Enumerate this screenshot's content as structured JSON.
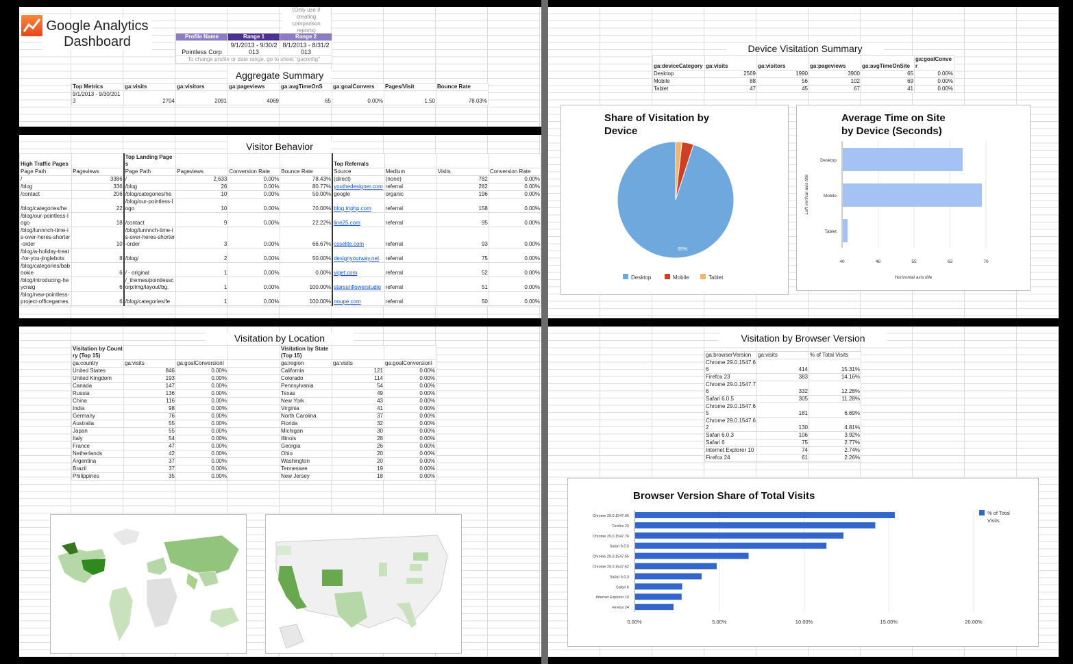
{
  "header": {
    "title_line1": "Google Analytics",
    "title_line2": "Dashboard",
    "note": "(Only use if creating comparison reports)",
    "profile_label": "Profile Name",
    "range1_label": "Range 1",
    "range2_label": "Range 2",
    "profile": "Pointless Corp",
    "range1": "9/1/2013 - 9/30/2013",
    "range2": "8/1/2013 - 8/31/2013",
    "hint": "To change profile or date range, go to sheet \"gaconfig\"",
    "brand_color": "#f4511e",
    "purple": "#8e7cc3",
    "purple_dark": "#4c2f92"
  },
  "aggregate": {
    "title": "Aggregate Summary",
    "headers": [
      "Top Metrics",
      "ga:visits",
      "ga:visitors",
      "ga:pageviews",
      "ga:avgTimeOnS",
      "ga:goalConvers",
      "Pages/Visit",
      "Bounce Rate"
    ],
    "row": [
      "9/1/2013 - 9/30/2013",
      "2704",
      "2091",
      "4069",
      "65",
      "0.00%",
      "1.50",
      "78.03%"
    ]
  },
  "visitor_behavior": {
    "title": "Visitor Behavior",
    "high_traffic": {
      "title": "High Traffic Pages",
      "headers": [
        "Page Path",
        "Pageviews"
      ],
      "rows": [
        [
          "/",
          "3386"
        ],
        [
          "/blog",
          "336"
        ],
        [
          "/contact",
          "206"
        ],
        [
          "/blog/categories/he",
          "22"
        ],
        [
          "/blog/our-pointless-logo",
          "18"
        ],
        [
          "/blog/lunnnch-time-is-over-heres-shorter-order",
          "10"
        ],
        [
          "/blog/a-holiday-treat-for-you-jinglebots",
          "8"
        ],
        [
          "/blog/categories/babookie",
          "6"
        ],
        [
          "/blog/introducing-heycraig",
          "6"
        ],
        [
          "/blog/new-pointless-project-officegames",
          "6"
        ]
      ]
    },
    "landing": {
      "title": "Top Landing Pages",
      "headers": [
        "Page Path",
        "Pageviews",
        "Conversion Rate",
        "Bounce Rate"
      ],
      "rows": [
        [
          "/",
          "2,633",
          "0.00%",
          "78.43%"
        ],
        [
          "/blog",
          "26",
          "0.00%",
          "80.77%"
        ],
        [
          "/blog/categories/he",
          "10",
          "0.00%",
          "50.00%"
        ],
        [
          "/blog/our-pointless-logo",
          "10",
          "0.00%",
          "70.00%"
        ],
        [
          "/contact",
          "9",
          "0.00%",
          "22.22%"
        ],
        [
          "/blog/lunnnch-time-is-over-heres-shorter-order",
          "3",
          "0.00%",
          "66.67%"
        ],
        [
          "/blog/",
          "2",
          "0.00%",
          "50.00%"
        ],
        [
          "/ - original",
          "1",
          "0.00%",
          "0.00%"
        ],
        [
          "/_themes/pointlesscorp/img/layout/bg.",
          "1",
          "0.00%",
          "100.00%"
        ],
        [
          "/blog/categories/fe",
          "1",
          "0.00%",
          "100.00%"
        ]
      ]
    },
    "referrals": {
      "title": "Top Referrals",
      "headers": [
        "Source",
        "Medium",
        "Visits",
        "Conversion Rate"
      ],
      "rows": [
        [
          "(direct)",
          "(none)",
          "782",
          "0.00%"
        ],
        [
          "youthedesigner.com",
          "referral",
          "282",
          "0.00%"
        ],
        [
          "google",
          "organic",
          "196",
          "0.00%"
        ],
        [
          "blog.triphp.com",
          "referral",
          "158",
          "0.00%"
        ],
        [
          "line25.com",
          "referral",
          "95",
          "0.00%"
        ],
        [
          "csselite.com",
          "referral",
          "93",
          "0.00%"
        ],
        [
          "designyourway.net",
          "referral",
          "75",
          "0.00%"
        ],
        [
          "viget.com",
          "referral",
          "52",
          "0.00%"
        ],
        [
          "starsunflowerstudio",
          "referral",
          "51",
          "0.00%"
        ],
        [
          "noupe.com",
          "referral",
          "50",
          "0.00%"
        ]
      ],
      "links": [
        false,
        true,
        false,
        true,
        true,
        true,
        true,
        true,
        true,
        true
      ]
    }
  },
  "location": {
    "title": "Visitation by Location",
    "country": {
      "title": "Visitation by Country (Top 15)",
      "headers": [
        "ga:country",
        "ga:visits",
        "ga:goalConversionI"
      ],
      "rows": [
        [
          "United States",
          "846",
          "0.00%"
        ],
        [
          "United Kingdom",
          "193",
          "0.00%"
        ],
        [
          "Canada",
          "147",
          "0.00%"
        ],
        [
          "Russia",
          "136",
          "0.00%"
        ],
        [
          "China",
          "116",
          "0.00%"
        ],
        [
          "India",
          "98",
          "0.00%"
        ],
        [
          "Germany",
          "76",
          "0.00%"
        ],
        [
          "Australia",
          "55",
          "0.00%"
        ],
        [
          "Japan",
          "55",
          "0.00%"
        ],
        [
          "Italy",
          "54",
          "0.00%"
        ],
        [
          "France",
          "47",
          "0.00%"
        ],
        [
          "Netherlands",
          "42",
          "0.00%"
        ],
        [
          "Argentina",
          "37",
          "0.00%"
        ],
        [
          "Brazil",
          "37",
          "0.00%"
        ],
        [
          "Philippines",
          "35",
          "0.00%"
        ]
      ]
    },
    "state": {
      "title": "Visitation by State (Top 15)",
      "headers": [
        "ga:region",
        "ga:visits",
        "ga:goalConversionI"
      ],
      "rows": [
        [
          "California",
          "121",
          "0.00%"
        ],
        [
          "Colorado",
          "114",
          "0.00%"
        ],
        [
          "Pennsylvania",
          "54",
          "0.00%"
        ],
        [
          "Texas",
          "49",
          "0.00%"
        ],
        [
          "New York",
          "43",
          "0.00%"
        ],
        [
          "Virginia",
          "41",
          "0.00%"
        ],
        [
          "North Carolina",
          "37",
          "0.00%"
        ],
        [
          "Florida",
          "32",
          "0.00%"
        ],
        [
          "Michigan",
          "30",
          "0.00%"
        ],
        [
          "Illinois",
          "28",
          "0.00%"
        ],
        [
          "Georgia",
          "26",
          "0.00%"
        ],
        [
          "Ohio",
          "20",
          "0.00%"
        ],
        [
          "Washington",
          "20",
          "0.00%"
        ],
        [
          "Tennessee",
          "19",
          "0.00%"
        ],
        [
          "New Jersey",
          "18",
          "0.00%"
        ]
      ]
    }
  },
  "device": {
    "title": "Device Visitation Summary",
    "headers": [
      "ga:deviceCategory",
      "ga:visits",
      "ga:visitors",
      "ga:pageviews",
      "ga:avgTimeOnSite",
      "ga:goalConver"
    ],
    "rows": [
      [
        "Desktop",
        "2569",
        "1990",
        "3900",
        "65",
        "0.00%"
      ],
      [
        "Mobile",
        "88",
        "56",
        "102",
        "69",
        "0.00%"
      ],
      [
        "Tablet",
        "47",
        "45",
        "67",
        "41",
        "0.00%"
      ]
    ]
  },
  "browser": {
    "title": "Visitation by Browser Version",
    "headers": [
      "ga:browserVersion",
      "ga:visits",
      "% of Total Visits"
    ],
    "rows": [
      [
        "Chrome 29.0.1547.66",
        "414",
        "15.31%"
      ],
      [
        "Firefox 23",
        "383",
        "14.16%"
      ],
      [
        "Chrome 29.0.1547.76",
        "332",
        "12.28%"
      ],
      [
        "Safari 6.0.5",
        "305",
        "11.28%"
      ],
      [
        "Chrome 29.0.1547.65",
        "181",
        "6.69%"
      ],
      [
        "Chrome 29.0.1547.62",
        "130",
        "4.81%"
      ],
      [
        "Safari 6.0.3",
        "106",
        "3.92%"
      ],
      [
        "Safari 6",
        "75",
        "2.77%"
      ],
      [
        "Internet Explorer 10",
        "74",
        "2.74%"
      ],
      [
        "Firefox 24",
        "61",
        "2.26%"
      ]
    ]
  },
  "chart_data": [
    {
      "type": "pie",
      "title": "Share of Visitation by Device",
      "categories": [
        "Desktop",
        "Mobile",
        "Tablet"
      ],
      "values": [
        2569,
        88,
        47
      ],
      "colors": [
        "#6fa8dc",
        "#cc4125",
        "#f6b26b"
      ],
      "slice_label": "95%",
      "legend": "bottom"
    },
    {
      "type": "bar",
      "orientation": "horizontal",
      "title": "Average Time on Site by Device (Seconds)",
      "categories": [
        "Desktop",
        "Mobile",
        "Tablet"
      ],
      "values": [
        65,
        69,
        41
      ],
      "xlim": [
        40,
        70
      ],
      "xticks": [
        "40",
        "48",
        "55",
        "63",
        "70"
      ],
      "xlabel": "Horizontal axis title",
      "ylabel": "Left vertical axis title",
      "color": "#a4c2f4",
      "grid": true
    },
    {
      "type": "bar",
      "orientation": "horizontal",
      "title": "Browser Version Share of Total Visits",
      "categories": [
        "Chrome 29.0.1547.66",
        "Firefox 23",
        "Chrome 29.0.1547.76",
        "Safari 6.0.5",
        "Chrome 29.0.1547.65",
        "Chrome 29.0.1547.62",
        "Safari 6.0.3",
        "Safari 6",
        "Internet Explorer 10",
        "Firefox 24"
      ],
      "series": [
        {
          "name": "% of Total Visits",
          "values": [
            15.31,
            14.16,
            12.28,
            11.28,
            6.69,
            4.81,
            3.92,
            2.77,
            2.74,
            2.26
          ]
        }
      ],
      "xlim": [
        0,
        20
      ],
      "xticks": [
        "0.00%",
        "5.00%",
        "10.00%",
        "15.00%",
        "20.00%"
      ],
      "color": "#3366cc",
      "legend": "right",
      "grid": true
    }
  ],
  "maps": {
    "world_label": "world-geo-map",
    "us_label": "us-geo-map",
    "color": "#6aa84f"
  }
}
